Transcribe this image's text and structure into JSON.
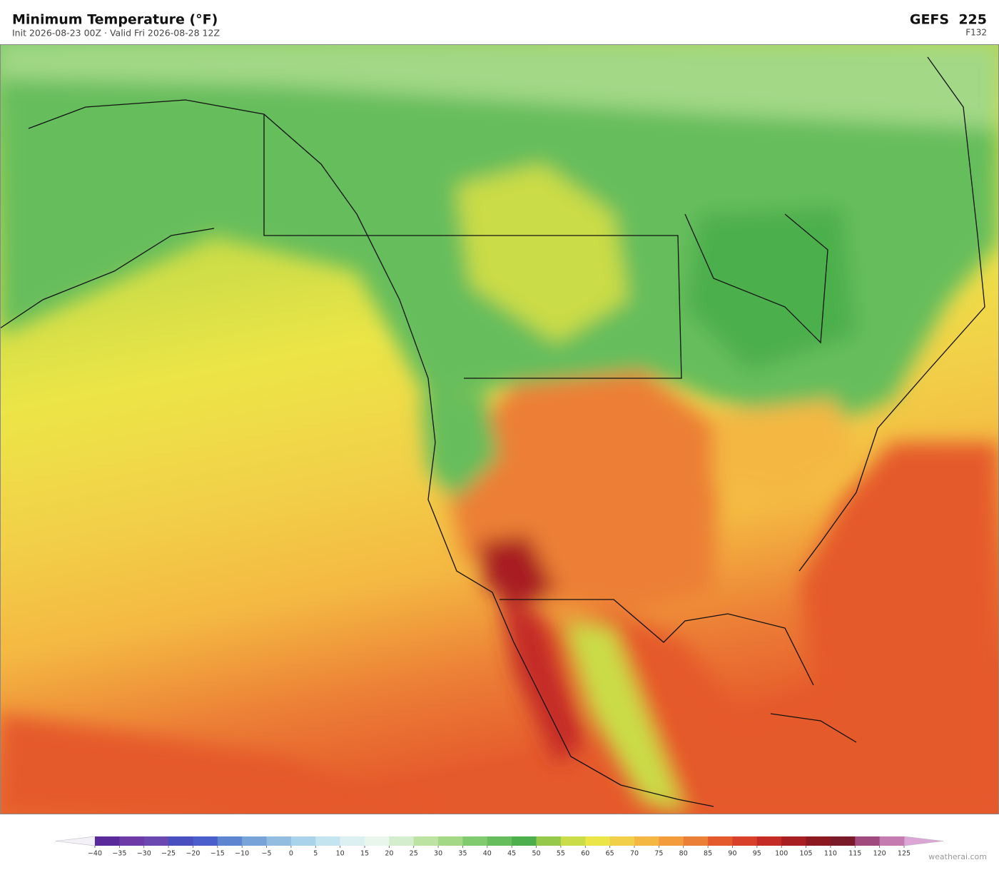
{
  "header": {
    "title": "Minimum Temperature  (°F)",
    "subtitle": "Init 2026-08-23 00Z  ·  Valid Fri 2026-08-28 12Z",
    "model": "GEFS  225",
    "forecast_hour": "F132"
  },
  "colorbar": {
    "ticks": [
      {
        "value": -40,
        "label": "−40"
      },
      {
        "value": -35,
        "label": "−35"
      },
      {
        "value": -30,
        "label": "−30"
      },
      {
        "value": -25,
        "label": "−25"
      },
      {
        "value": -20,
        "label": "−20"
      },
      {
        "value": -15,
        "label": "−15"
      },
      {
        "value": -10,
        "label": "−10"
      },
      {
        "value": -5,
        "label": "−5"
      },
      0,
      5,
      10,
      15,
      20,
      25,
      30,
      35,
      40,
      45,
      50,
      55,
      60,
      65,
      70,
      75,
      80,
      85,
      90,
      95,
      100,
      105,
      110,
      115,
      120,
      125
    ],
    "colors": [
      "#5b2a9a",
      "#6d3aa6",
      "#6a48b0",
      "#4a4fc0",
      "#4a5fcc",
      "#5d85d0",
      "#77a3d8",
      "#93bde0",
      "#a9d3ea",
      "#c4e4f0",
      "#dcf0f2",
      "#e9f6ec",
      "#d4edcc",
      "#bde3a3",
      "#a2d886",
      "#7fcb6e",
      "#66bd5c",
      "#4caf4c",
      "#96c84a",
      "#cadc47",
      "#ece547",
      "#f2cf48",
      "#f4b842",
      "#f29c3c",
      "#ec7f36",
      "#e55a2c",
      "#d8402a",
      "#c42b25",
      "#a81f22",
      "#8c1820",
      "#7a1a28",
      "#a04b80",
      "#c47bb0"
    ],
    "under_color": "#f4f0f8",
    "over_color": "#dba6d6"
  },
  "footer": {
    "credit": "weatherai.com"
  }
}
